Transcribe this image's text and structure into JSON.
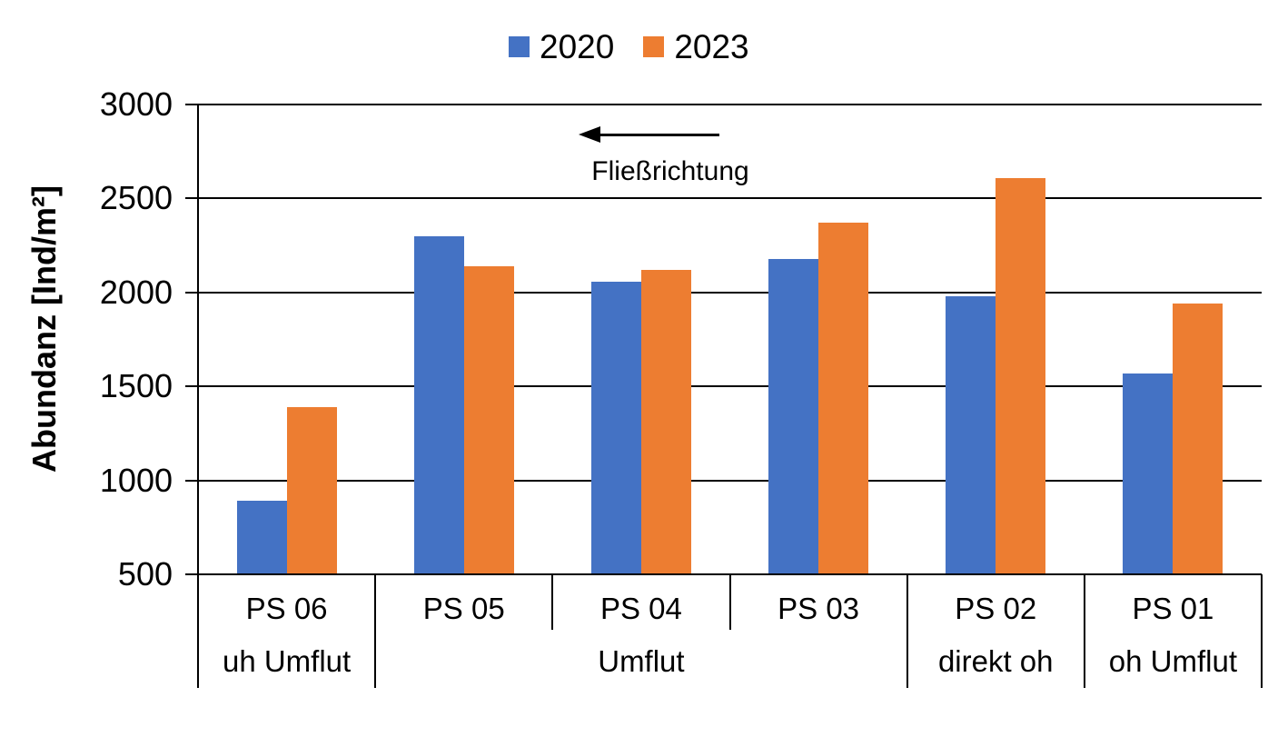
{
  "chart_data": {
    "type": "bar",
    "title": "",
    "categories": [
      "PS 06",
      "PS 05",
      "PS 04",
      "PS 03",
      "PS 02",
      "PS 01"
    ],
    "series": [
      {
        "name": "2020",
        "color": "#4472C4",
        "values": [
          890,
          2300,
          2055,
          2180,
          1980,
          1570
        ]
      },
      {
        "name": "2023",
        "color": "#ED7D31",
        "values": [
          1390,
          2140,
          2120,
          2370,
          2610,
          1940
        ]
      }
    ],
    "xlabel": "",
    "ylabel": "Abundanz [Ind/m²]",
    "ylim": [
      500,
      3000
    ],
    "yticks": [
      3000,
      2500,
      2000,
      1500,
      1000,
      500
    ],
    "grid": "horizontal",
    "legend_position": "top-center",
    "category_groups": [
      {
        "label": "uh Umflut",
        "from": 0,
        "to": 1
      },
      {
        "label": "Umflut",
        "from": 1,
        "to": 4
      },
      {
        "label": "direkt oh",
        "from": 4,
        "to": 5
      },
      {
        "label": "oh Umflut",
        "from": 5,
        "to": 6
      }
    ],
    "annotation": {
      "text": "Fließrichtung",
      "arrow_direction": "left"
    }
  },
  "colors": {
    "bar_2020": "#4472C4",
    "bar_2023": "#ED7D31",
    "axis_and_grid": "#000000",
    "background": "#FFFFFF",
    "text": "#000000"
  }
}
